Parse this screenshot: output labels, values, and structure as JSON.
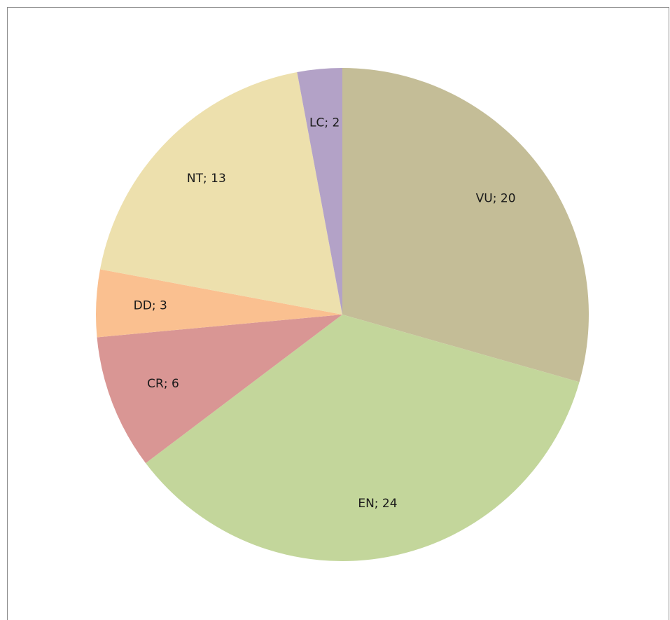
{
  "chart_data": {
    "type": "pie",
    "title": "",
    "legend": "none",
    "slices": [
      {
        "category": "VU",
        "value": 20,
        "color": "#c4bd97",
        "label": "VU; 20"
      },
      {
        "category": "EN",
        "value": 24,
        "color": "#c3d69b",
        "label": "EN; 24"
      },
      {
        "category": "CR",
        "value": 6,
        "color": "#d99694",
        "label": "CR; 6"
      },
      {
        "category": "DD",
        "value": 3,
        "color": "#fac090",
        "label": "DD; 3"
      },
      {
        "category": "NT",
        "value": 13,
        "color": "#ede0ad",
        "label": "NT; 13"
      },
      {
        "category": "LC",
        "value": 2,
        "color": "#b3a2c7",
        "label": "LC; 2"
      }
    ]
  }
}
